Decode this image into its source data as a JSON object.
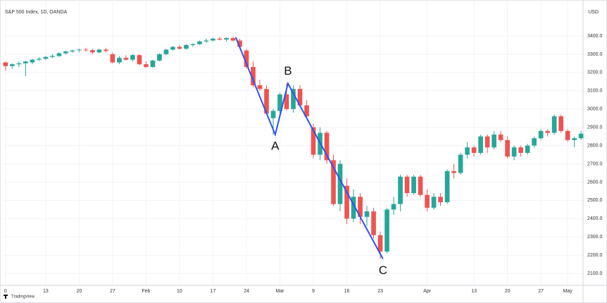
{
  "chart_data": {
    "type": "candlestick",
    "title": "S&P 500 Index, 1D, OANDA",
    "currency": "USD",
    "watermark": "TradingView",
    "up_color": "#26a69a",
    "down_color": "#ef5350",
    "grid": true,
    "categories": [
      "0",
      null,
      null,
      null,
      null,
      null,
      "13",
      null,
      null,
      null,
      null,
      "20",
      null,
      null,
      null,
      null,
      "27",
      null,
      null,
      null,
      null,
      "Feb",
      null,
      null,
      null,
      null,
      "10",
      null,
      null,
      null,
      null,
      "17",
      null,
      null,
      null,
      null,
      "24",
      null,
      null,
      null,
      null,
      "Mar",
      null,
      null,
      null,
      null,
      "9",
      null,
      null,
      null,
      null,
      "16",
      null,
      null,
      null,
      null,
      "23",
      null,
      null,
      null,
      null,
      null,
      null,
      "Apr",
      null,
      null,
      null,
      null,
      null,
      null,
      "13",
      null,
      null,
      null,
      null,
      "20",
      null,
      null,
      null,
      null,
      "27",
      null,
      null,
      null,
      "May",
      null,
      null
    ],
    "open": [
      3255,
      3235,
      3245,
      3250,
      3255,
      3270,
      3275,
      3285,
      3290,
      3305,
      3315,
      3322,
      3325,
      3322,
      3310,
      3325,
      3300,
      3255,
      3280,
      3270,
      3295,
      3245,
      3230,
      3265,
      3300,
      3325,
      3340,
      3330,
      3350,
      3355,
      3370,
      3375,
      3385,
      3380,
      3388,
      3375,
      3320,
      3230,
      3130,
      3110,
      2950,
      2990,
      3080,
      3000,
      3110,
      3020,
      2900,
      2750,
      2870,
      2720,
      2480,
      2580,
      2400,
      2520,
      2410,
      2440,
      2310,
      2220,
      2450,
      2480,
      2630,
      2540,
      2630,
      2530,
      2460,
      2520,
      2490,
      2660,
      2650,
      2750,
      2790,
      2760,
      2850,
      2790,
      2860,
      2830,
      2740,
      2790,
      2760,
      2800,
      2840,
      2880,
      2870,
      2960,
      2880,
      2830,
      2840
    ],
    "high": [
      3260,
      3250,
      3260,
      3265,
      3275,
      3285,
      3290,
      3300,
      3310,
      3320,
      3325,
      3330,
      3335,
      3330,
      3330,
      3335,
      3310,
      3290,
      3295,
      3300,
      3300,
      3260,
      3270,
      3305,
      3330,
      3345,
      3350,
      3355,
      3360,
      3375,
      3385,
      3390,
      3395,
      3392,
      3395,
      3385,
      3330,
      3260,
      3160,
      3130,
      3000,
      3090,
      3140,
      3130,
      3130,
      3050,
      2920,
      2900,
      2880,
      2750,
      2720,
      2620,
      2560,
      2540,
      2470,
      2460,
      2330,
      2460,
      2520,
      2640,
      2640,
      2640,
      2640,
      2560,
      2540,
      2540,
      2670,
      2700,
      2760,
      2820,
      2800,
      2860,
      2860,
      2880,
      2880,
      2850,
      2800,
      2800,
      2810,
      2850,
      2890,
      2890,
      2970,
      2970,
      2890,
      2850,
      2880
    ],
    "low": [
      3210,
      3220,
      3230,
      3180,
      3245,
      3262,
      3268,
      3278,
      3285,
      3298,
      3308,
      3310,
      3315,
      3300,
      3305,
      3310,
      3250,
      3245,
      3265,
      3260,
      3240,
      3225,
      3225,
      3260,
      3295,
      3320,
      3325,
      3325,
      3340,
      3350,
      3362,
      3370,
      3375,
      3370,
      3370,
      3330,
      3220,
      3120,
      3100,
      2970,
      2860,
      2950,
      2990,
      2980,
      3010,
      2950,
      2730,
      2720,
      2700,
      2470,
      2440,
      2370,
      2380,
      2370,
      2360,
      2290,
      2180,
      2210,
      2420,
      2440,
      2520,
      2530,
      2520,
      2440,
      2450,
      2470,
      2480,
      2620,
      2640,
      2730,
      2740,
      2750,
      2760,
      2780,
      2820,
      2730,
      2720,
      2740,
      2750,
      2790,
      2830,
      2850,
      2860,
      2870,
      2820,
      2790,
      2830
    ],
    "close": [
      3235,
      3245,
      3250,
      3260,
      3270,
      3275,
      3285,
      3290,
      3305,
      3315,
      3320,
      3325,
      3322,
      3310,
      3325,
      3318,
      3255,
      3280,
      3270,
      3295,
      3245,
      3230,
      3265,
      3300,
      3325,
      3340,
      3330,
      3350,
      3355,
      3370,
      3375,
      3385,
      3380,
      3388,
      3375,
      3340,
      3230,
      3130,
      3110,
      2975,
      2990,
      3080,
      3000,
      3110,
      3020,
      2960,
      2750,
      2870,
      2720,
      2480,
      2700,
      2400,
      2520,
      2410,
      2440,
      2310,
      2220,
      2450,
      2480,
      2630,
      2540,
      2630,
      2530,
      2460,
      2520,
      2490,
      2660,
      2650,
      2750,
      2790,
      2760,
      2850,
      2790,
      2860,
      2830,
      2740,
      2790,
      2760,
      2800,
      2840,
      2880,
      2870,
      2960,
      2880,
      2830,
      2840,
      2865
    ],
    "pattern": {
      "color": "#2f54eb",
      "x": [
        34.4,
        40.3,
        42.2,
        56.4
      ],
      "y": [
        3392,
        2860,
        3140,
        2180
      ],
      "labels": [
        null,
        "A",
        "B",
        "C"
      ]
    },
    "xlim": [
      -0.3,
      86.3
    ],
    "ylim": [
      2035,
      3558
    ],
    "yticks": [
      {
        "value": 2100,
        "label": "2100.0"
      },
      {
        "value": 2200,
        "label": "2200.0"
      },
      {
        "value": 2300,
        "label": "2300.0"
      },
      {
        "value": 2400,
        "label": "2400.0"
      },
      {
        "value": 2500,
        "label": "2500.0"
      },
      {
        "value": 2600,
        "label": "2600.0"
      },
      {
        "value": 2700,
        "label": "2700.0"
      },
      {
        "value": 2800,
        "label": "2800.0"
      },
      {
        "value": 2900,
        "label": "2900.0"
      },
      {
        "value": 3000,
        "label": "3000.0"
      },
      {
        "value": 3100,
        "label": "3100.0"
      },
      {
        "value": 3200,
        "label": "3200.0"
      },
      {
        "value": 3300,
        "label": "3300.0"
      },
      {
        "value": 3400,
        "label": "3400.0"
      }
    ]
  }
}
